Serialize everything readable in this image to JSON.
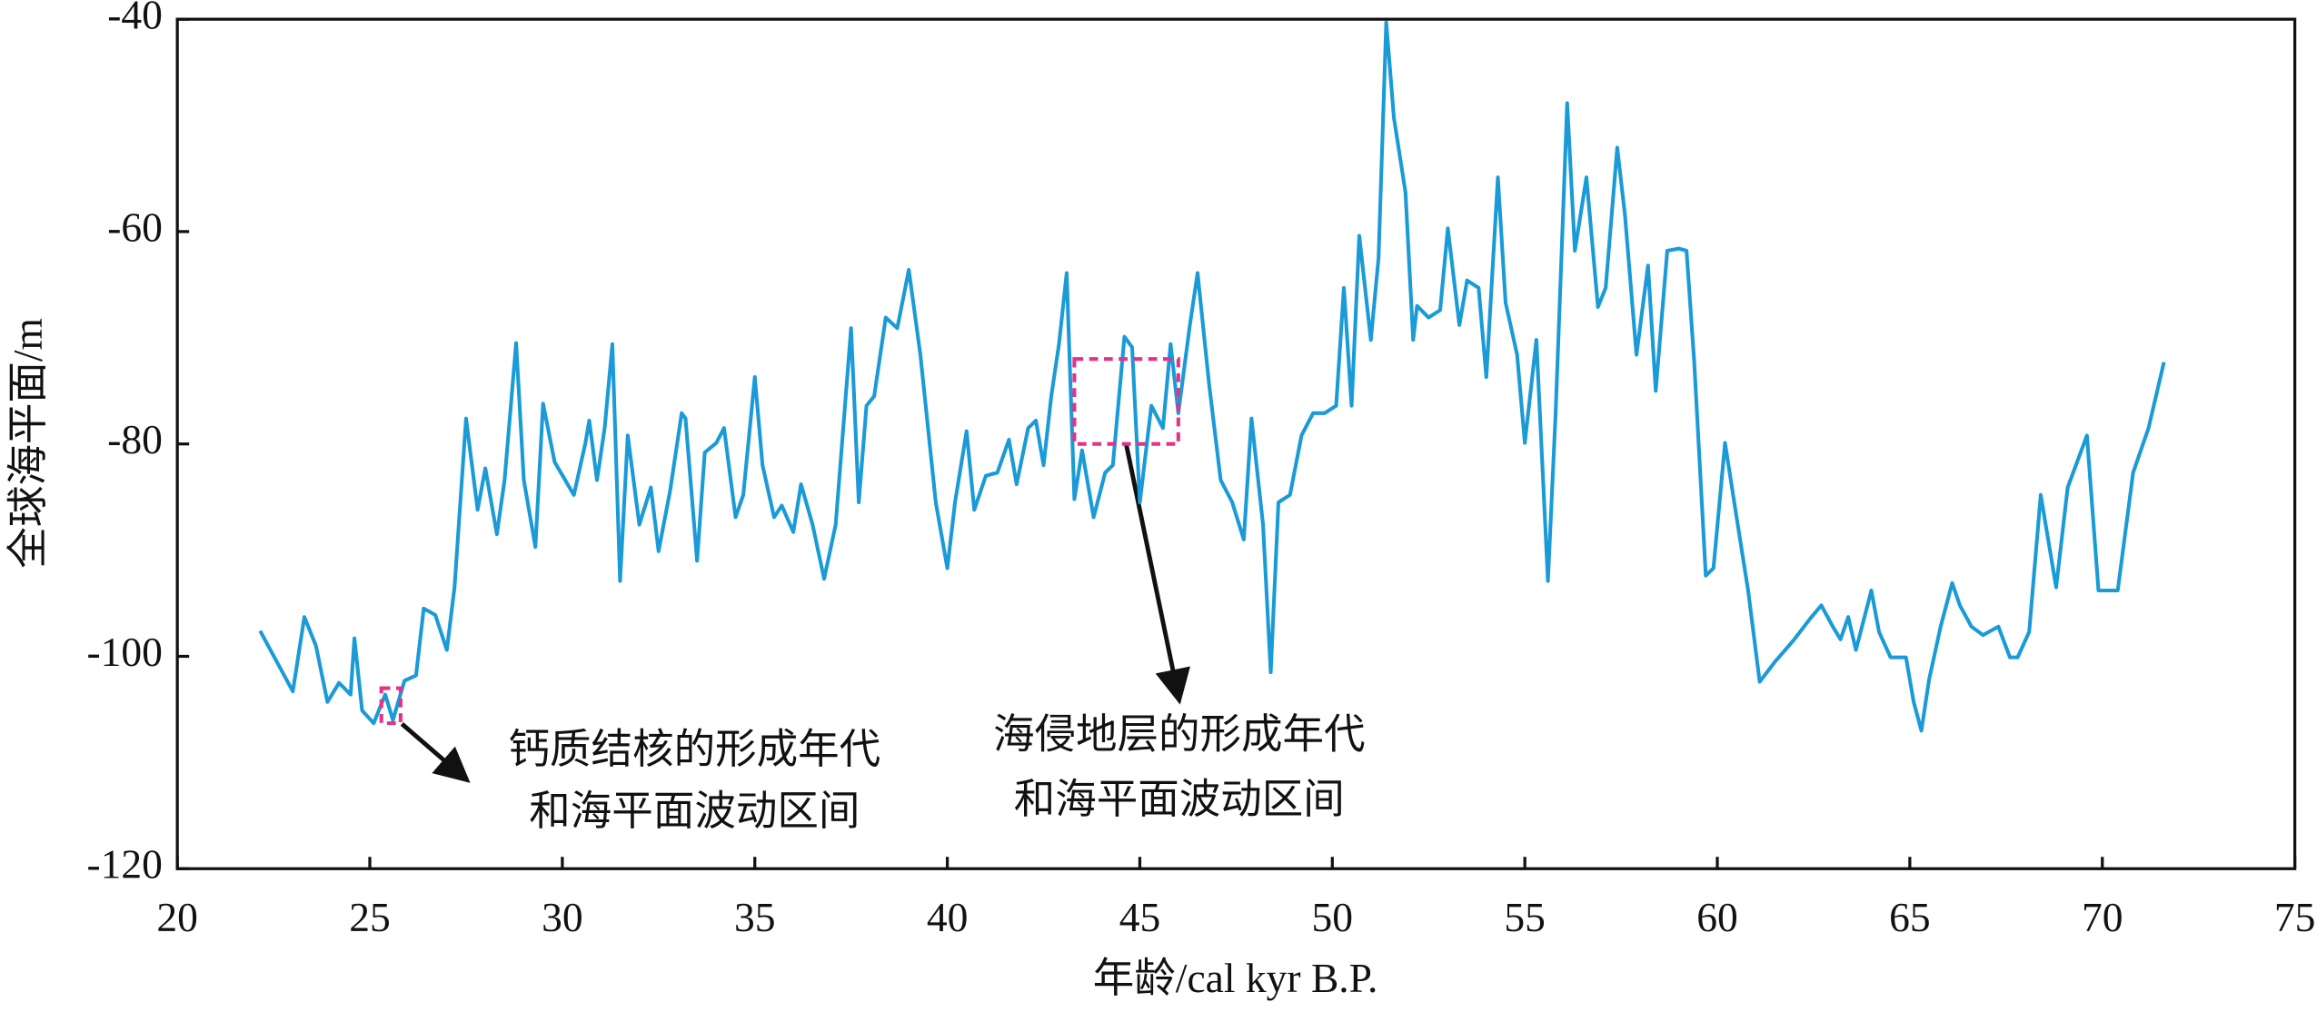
{
  "chart_data": {
    "type": "line",
    "xlabel": "年龄/cal kyr B.P.",
    "ylabel": "全球海平面/m",
    "xlim": [
      20,
      75
    ],
    "xticks": [
      20,
      25,
      30,
      35,
      40,
      45,
      50,
      55,
      60,
      65,
      70,
      75
    ],
    "ylim": [
      -120,
      -40
    ],
    "yticks": [
      -120,
      -100,
      -80,
      -60,
      -40
    ],
    "color": "#1a9bd7",
    "x": [
      22.15,
      23.0,
      23.3,
      23.6,
      23.9,
      24.2,
      24.5,
      24.6,
      24.8,
      25.1,
      25.4,
      25.6,
      25.9,
      26.2,
      26.4,
      26.7,
      27.0,
      27.2,
      27.5,
      27.8,
      28.0,
      28.3,
      28.5,
      28.8,
      29.0,
      29.3,
      29.5,
      29.8,
      30.3,
      30.6,
      30.7,
      30.9,
      31.1,
      31.3,
      31.5,
      31.7,
      32.0,
      32.3,
      32.5,
      32.8,
      33.1,
      33.2,
      33.5,
      33.7,
      34.0,
      34.2,
      34.5,
      34.7,
      35.0,
      35.2,
      35.5,
      35.7,
      36.0,
      36.2,
      36.5,
      36.8,
      37.1,
      37.5,
      37.7,
      37.9,
      38.1,
      38.4,
      38.7,
      39.0,
      39.3,
      39.7,
      40.0,
      40.2,
      40.5,
      40.7,
      41.0,
      41.3,
      41.6,
      41.8,
      42.1,
      42.3,
      42.5,
      42.7,
      42.9,
      43.1,
      43.3,
      43.5,
      43.8,
      44.1,
      44.3,
      44.6,
      44.8,
      45.0,
      45.3,
      45.6,
      45.8,
      46.0,
      46.3,
      46.5,
      46.8,
      47.1,
      47.4,
      47.7,
      47.9,
      48.2,
      48.4,
      48.6,
      48.9,
      49.2,
      49.5,
      49.8,
      50.1,
      50.3,
      50.5,
      50.7,
      51.0,
      51.2,
      51.4,
      51.6,
      51.9,
      52.1,
      52.2,
      52.5,
      52.8,
      53.0,
      53.3,
      53.5,
      53.8,
      54.0,
      54.3,
      54.5,
      54.8,
      55.0,
      55.3,
      55.6,
      55.8,
      56.1,
      56.3,
      56.6,
      56.9,
      57.1,
      57.4,
      57.6,
      57.9,
      58.2,
      58.4,
      58.7,
      59.0,
      59.2,
      59.4,
      59.7,
      59.9,
      60.2,
      60.5,
      60.8,
      61.1,
      61.5,
      62.0,
      62.4,
      62.7,
      63.0,
      63.2,
      63.4,
      63.6,
      64.0,
      64.2,
      64.5,
      64.9,
      65.1,
      65.3,
      65.5,
      65.8,
      66.1,
      66.3,
      66.6,
      66.9,
      67.3,
      67.6,
      67.8,
      68.1,
      68.4,
      68.8,
      69.1,
      69.6,
      69.9,
      70.4,
      70.8,
      71.2,
      71.6
    ],
    "values": [
      -97.6,
      -103.3,
      -96.3,
      -99,
      -104.3,
      -102.5,
      -103.6,
      -98.3,
      -105.1,
      -106.3,
      -103.6,
      -106,
      -102.3,
      -101.8,
      -95.5,
      -96.1,
      -99.4,
      -93.5,
      -77.6,
      -86.2,
      -82.3,
      -88.5,
      -83.4,
      -70.5,
      -83.4,
      -89.7,
      -76.2,
      -81.7,
      -84.8,
      -79.9,
      -77.8,
      -83.4,
      -78.5,
      -70.6,
      -92.9,
      -79.2,
      -87.6,
      -84.1,
      -90.1,
      -84.4,
      -77.1,
      -77.6,
      -91,
      -80.8,
      -79.9,
      -78.5,
      -86.9,
      -84.8,
      -73.7,
      -82,
      -86.9,
      -85.8,
      -88.3,
      -83.8,
      -87.6,
      -92.7,
      -87.6,
      -69.1,
      -85.5,
      -76.4,
      -75.5,
      -68.1,
      -69.1,
      -63.6,
      -71.6,
      -85.5,
      -91.7,
      -85.5,
      -78.8,
      -86.2,
      -83,
      -82.7,
      -79.6,
      -83.8,
      -78.5,
      -77.8,
      -82,
      -75.5,
      -70.6,
      -63.9,
      -85.2,
      -80.6,
      -86.9,
      -82.7,
      -82,
      -69.9,
      -70.9,
      -85.5,
      -76.4,
      -78.5,
      -70.6,
      -77.1,
      -68.8,
      -63.9,
      -74.4,
      -83.4,
      -85.5,
      -89,
      -77.6,
      -87.6,
      -101.5,
      -85.5,
      -84.8,
      -79.2,
      -77.1,
      -77.1,
      -76.4,
      -65.3,
      -76.4,
      -60.4,
      -70.2,
      -62.5,
      -40.3,
      -49.3,
      -56.3,
      -70.2,
      -67,
      -68.1,
      -67.4,
      -59.7,
      -68.8,
      -64.6,
      -65.3,
      -73.7,
      -54.9,
      -66.7,
      -71.6,
      -79.9,
      -70.2,
      -92.9,
      -77.1,
      -47.9,
      -61.8,
      -54.9,
      -67.1,
      -65.3,
      -52.1,
      -58.4,
      -71.6,
      -63.2,
      -75,
      -61.8,
      -61.6,
      -61.8,
      -72.3,
      -92.4,
      -91.7,
      -79.9,
      -86.9,
      -93.8,
      -102.4,
      -100.5,
      -98.4,
      -96.5,
      -95.2,
      -97.2,
      -98.4,
      -96.3,
      -99.4,
      -93.8,
      -97.7,
      -100.1,
      -100.1,
      -104.3,
      -107,
      -102.2,
      -97.2,
      -93.1,
      -95.2,
      -97.2,
      -98,
      -97.2,
      -100.1,
      -100.1,
      -97.7,
      -84.8,
      -93.5,
      -84.1,
      -79.2,
      -93.8,
      -93.8,
      -82.7,
      -78.5,
      -72.3
    ],
    "annotations": [
      {
        "text": [
          "钙质结核的形成年代",
          "和海平面波动区间"
        ],
        "xrange": [
          25.3,
          25.8
        ],
        "yrange": [
          -106.3,
          -103
        ]
      },
      {
        "text": [
          "海侵地层的形成年代",
          "和海平面波动区间"
        ],
        "xrange": [
          43.3,
          46.0
        ],
        "yrange": [
          -80,
          -72
        ]
      }
    ]
  }
}
